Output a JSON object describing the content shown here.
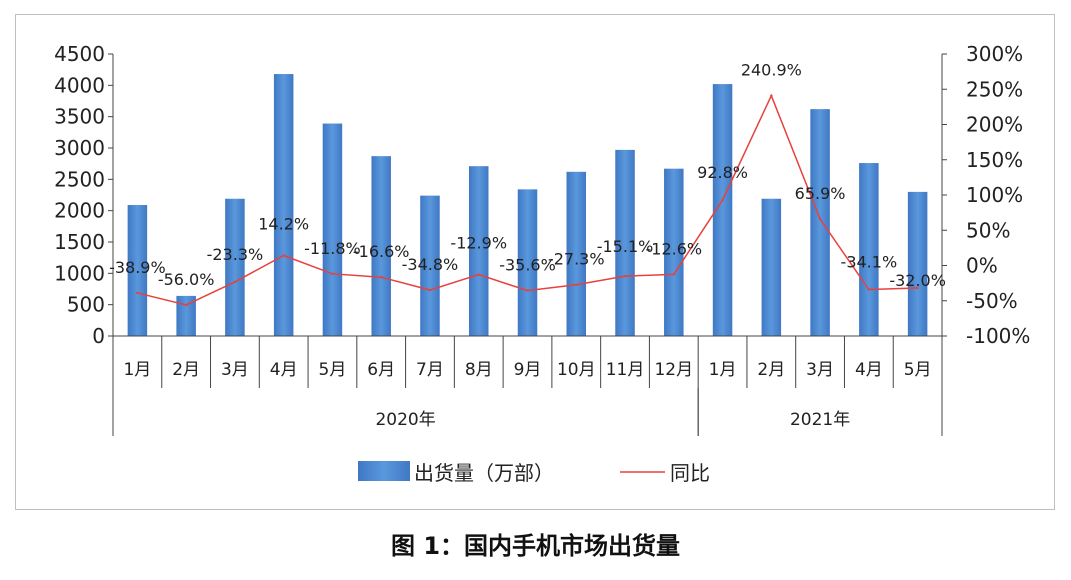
{
  "caption": "图 1：国内手机市场出货量",
  "chart_data": {
    "type": "bar",
    "categories": [
      "1月",
      "2月",
      "3月",
      "4月",
      "5月",
      "6月",
      "7月",
      "8月",
      "9月",
      "10月",
      "11月",
      "12月",
      "1月",
      "2月",
      "3月",
      "4月",
      "5月"
    ],
    "groups": [
      {
        "label": "2020年",
        "start": 0,
        "count": 12
      },
      {
        "label": "2021年",
        "start": 12,
        "count": 5
      }
    ],
    "series": [
      {
        "name": "出货量（万部）",
        "type": "bar",
        "axis": "left",
        "color": "#4a86d0",
        "values": [
          2090,
          640,
          2190,
          4180,
          3390,
          2870,
          2240,
          2710,
          2340,
          2620,
          2970,
          2670,
          4020,
          2190,
          3620,
          2760,
          2300
        ]
      },
      {
        "name": "同比",
        "type": "line",
        "axis": "right",
        "color": "#e8413c",
        "values": [
          -38.9,
          -56.0,
          -23.3,
          14.2,
          -11.8,
          -16.6,
          -34.8,
          -12.9,
          -35.6,
          -27.3,
          -15.1,
          -12.6,
          92.8,
          240.9,
          65.9,
          -34.1,
          -32.0
        ],
        "labels": [
          "-38.9%",
          "-56.0%",
          "-23.3%",
          "14.2%",
          "-11.8%",
          "-16.6%",
          "-34.8%",
          "-12.9%",
          "-35.6%",
          "-27.3%",
          "-15.1%",
          "-12.6%",
          "92.8%",
          "240.9%",
          "65.9%",
          "-34.1%",
          "-32.0%"
        ]
      }
    ],
    "y_left": {
      "min": 0,
      "max": 4500,
      "ticks": [
        "0",
        "500",
        "1000",
        "1500",
        "2000",
        "2500",
        "3000",
        "3500",
        "4000",
        "4500"
      ]
    },
    "y_right": {
      "min": -100,
      "max": 300,
      "ticks": [
        "-100%",
        "-50%",
        "0%",
        "50%",
        "100%",
        "150%",
        "200%",
        "250%",
        "300%"
      ]
    },
    "legend_position": "bottom",
    "grid": false
  }
}
